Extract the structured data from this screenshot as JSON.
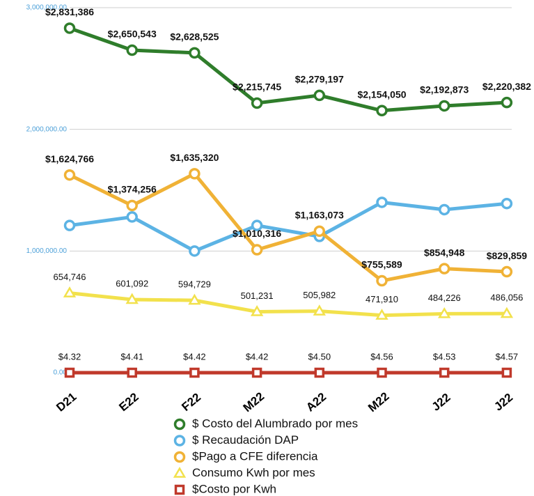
{
  "chart_data": {
    "type": "line",
    "categories": [
      "D21",
      "E22",
      "F22",
      "M22",
      "A22",
      "M22",
      "J22",
      "J22"
    ],
    "ylim": [
      0,
      3000000
    ],
    "yticks": [
      {
        "value": 0,
        "label": "0.00"
      },
      {
        "value": 1000000,
        "label": "1,000,000.00"
      },
      {
        "value": 2000000,
        "label": "2,000,000.00"
      },
      {
        "value": 3000000,
        "label": "3,000,000.00"
      }
    ],
    "grid": true,
    "legend": "bottom",
    "series": [
      {
        "name": "$ Costo del Alumbrado por mes",
        "color": "#2f7d2b",
        "marker": "circle",
        "bold": true,
        "values": [
          2831386,
          2650543,
          2628525,
          2215745,
          2279197,
          2154050,
          2192873,
          2220382
        ],
        "value_labels": [
          "$2,831,386",
          "$2,650,543",
          "$2,628,525",
          "$2,215,745",
          "$2,279,197",
          "$2,154,050",
          "$2,192,873",
          "$2,220,382"
        ]
      },
      {
        "name": "$ Recaudación DAP",
        "color": "#5cb3e4",
        "marker": "circle",
        "values": [
          1210000,
          1280000,
          1000000,
          1210000,
          1120000,
          1400000,
          1340000,
          1390000
        ]
      },
      {
        "name": "$Pago a CFE diferencia",
        "color": "#f0b236",
        "marker": "circle",
        "bold": true,
        "values": [
          1624766,
          1374256,
          1635320,
          1010316,
          1163073,
          755589,
          854948,
          829859
        ],
        "value_labels": [
          "$1,624,766",
          "$1,374,256",
          "$1,635,320",
          "$1,010,316",
          "$1,163,073",
          "$755,589",
          "$854,948",
          "$829,859"
        ]
      },
      {
        "name": "Consumo Kwh por mes",
        "color": "#f2e14c",
        "marker": "triangle",
        "values": [
          654746,
          601092,
          594729,
          501231,
          505982,
          471910,
          484226,
          486056
        ],
        "value_labels": [
          "654,746",
          "601,092",
          "594,729",
          "501,231",
          "505,982",
          "471,910",
          "484,226",
          "486,056"
        ]
      },
      {
        "name": "$Costo por Kwh",
        "color": "#c0392b",
        "marker": "square",
        "values": [
          4.32,
          4.41,
          4.42,
          4.42,
          4.5,
          4.56,
          4.53,
          4.57
        ],
        "value_labels": [
          "$4.32",
          "$4.41",
          "$4.42",
          "$4.42",
          "$4.50",
          "$4.56",
          "$4.53",
          "$4.57"
        ]
      }
    ]
  }
}
